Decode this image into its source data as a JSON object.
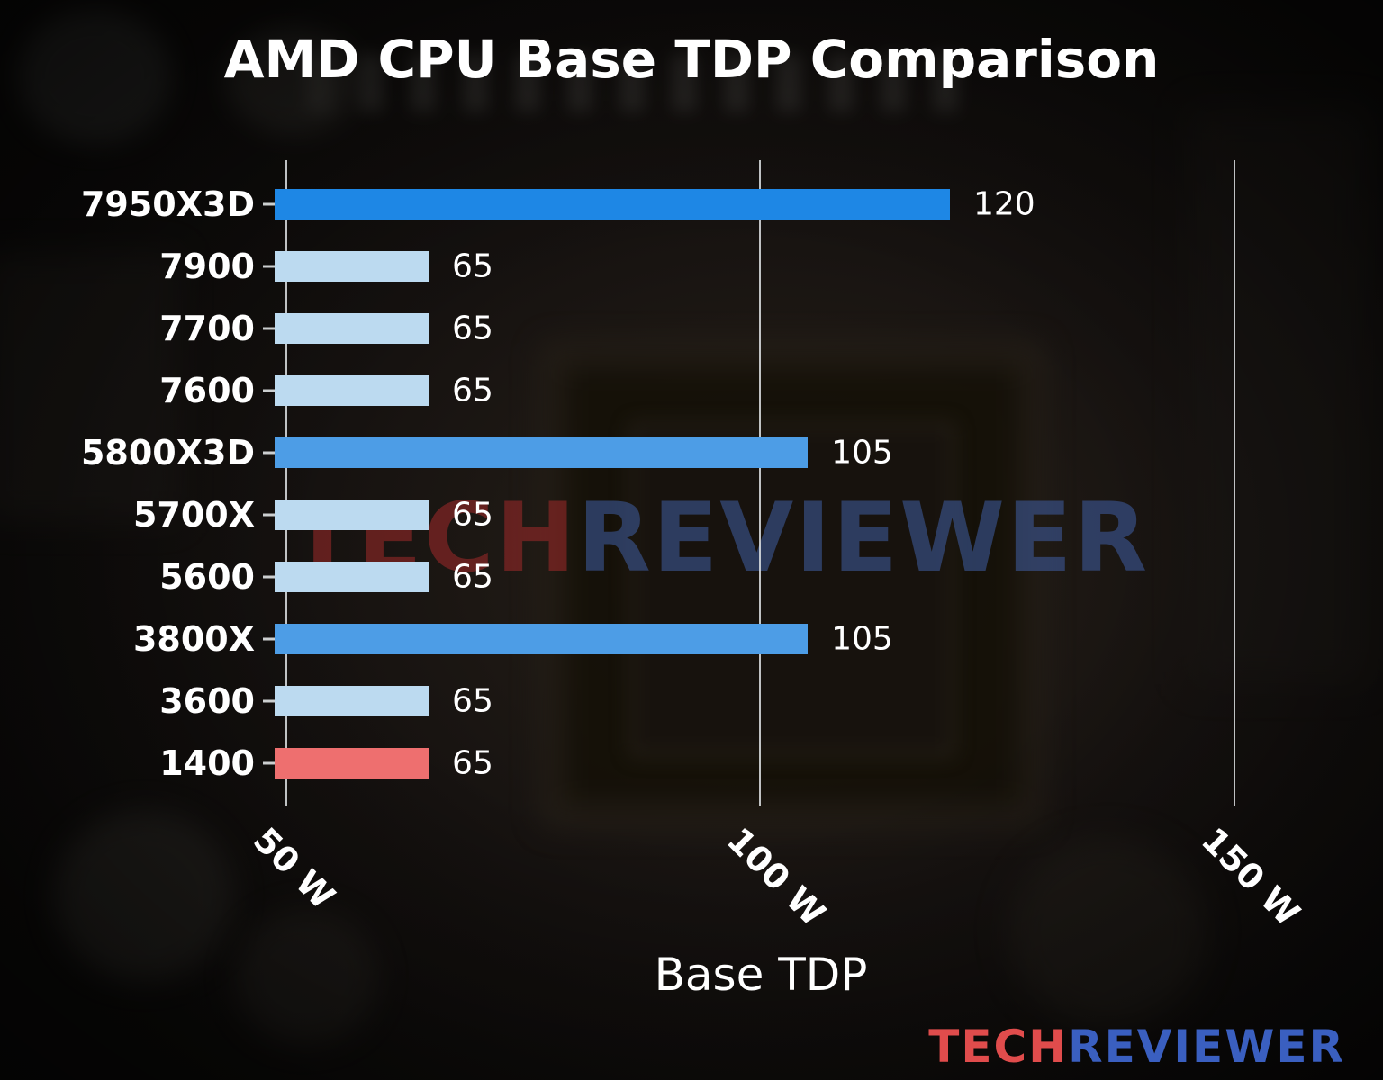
{
  "title": "AMD CPU Base TDP Comparison",
  "watermark": {
    "part1": "TECH",
    "part2": "REVIEWER"
  },
  "logo": {
    "part1": "TECH",
    "part2": "REVIEWER"
  },
  "colors": {
    "bar_blue_bright": "#1e87e5",
    "bar_blue_medium": "#4d9de6",
    "bar_blue_pale": "#bcdaf0",
    "bar_red": "#ee6f6f",
    "gridline": "#dee2e4",
    "text": "#ffffff",
    "logo_red": "#e04c4c",
    "logo_blue": "#3a5fc0",
    "watermark_red": "#a02a2a",
    "watermark_blue": "#405ea4"
  },
  "chart_data": {
    "type": "bar",
    "orientation": "horizontal",
    "title": "AMD CPU Base TDP Comparison",
    "xlabel": "Base TDP",
    "ylabel": "",
    "categories": [
      "7950X3D",
      "7900",
      "7700",
      "7600",
      "5800X3D",
      "5700X",
      "5600",
      "3800X",
      "3600",
      "1400"
    ],
    "values": [
      120,
      65,
      65,
      65,
      105,
      65,
      65,
      105,
      65,
      65
    ],
    "value_unit": "W",
    "bar_colors": [
      "#1e87e5",
      "#bcdaf0",
      "#bcdaf0",
      "#bcdaf0",
      "#4d9de6",
      "#bcdaf0",
      "#bcdaf0",
      "#4d9de6",
      "#bcdaf0",
      "#ee6f6f"
    ],
    "xticks": [
      {
        "value": 50,
        "label": "50 W"
      },
      {
        "value": 100,
        "label": "100 W"
      },
      {
        "value": 150,
        "label": "150 W"
      }
    ],
    "xtick_rotation_deg": 45,
    "xlim": [
      48.75,
      158
    ],
    "grid": true,
    "legend": false
  }
}
